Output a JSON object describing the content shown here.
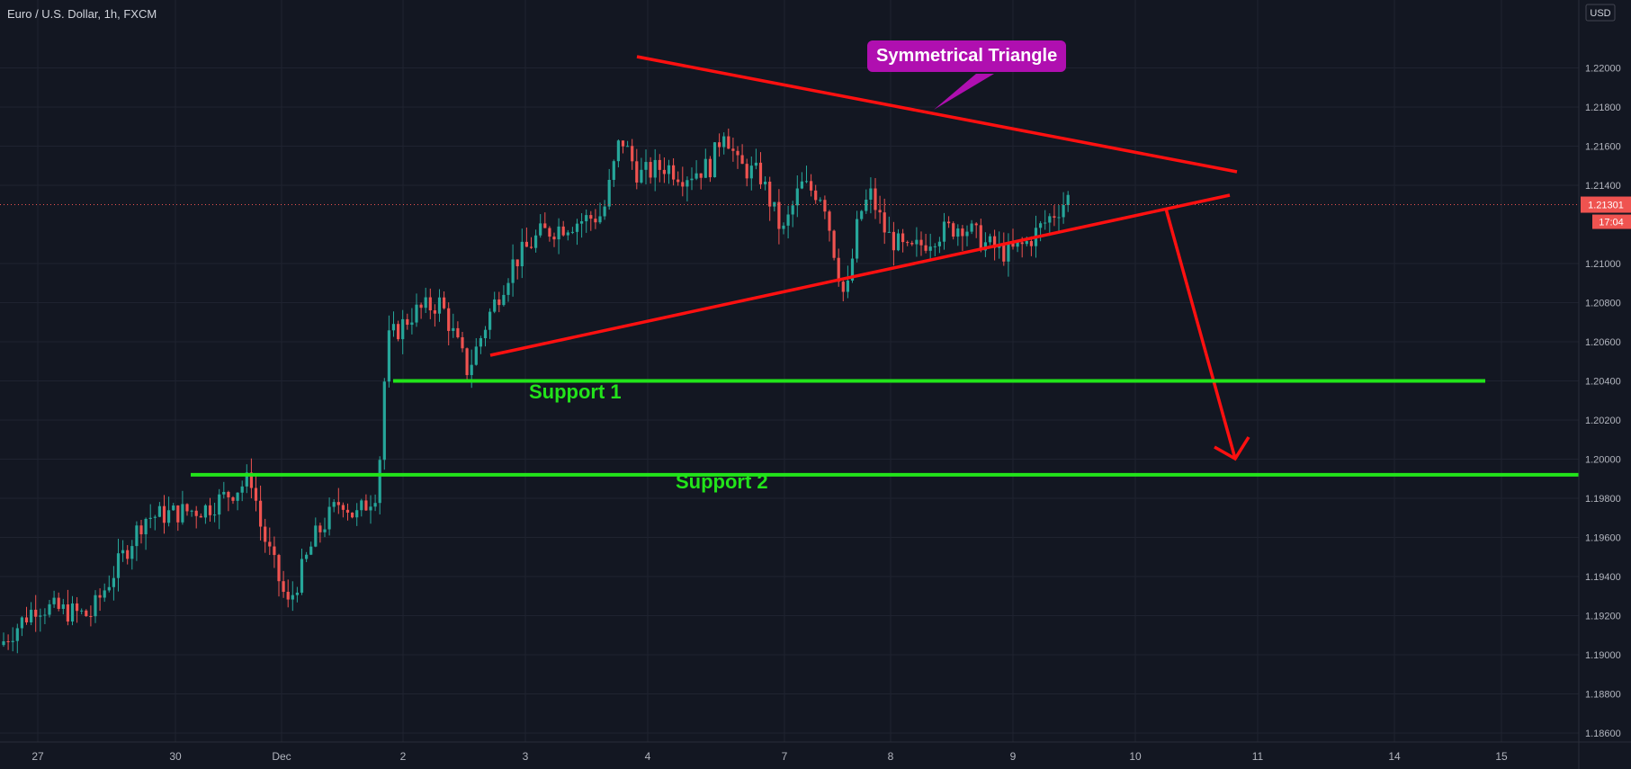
{
  "symbol_title": "Euro / U.S. Dollar, 1h, FXCM",
  "currency_label": "USD",
  "last_price": "1.21301",
  "countdown": "17:04",
  "colors": {
    "background": "#131722",
    "grid": "#1f2330",
    "up": "#26a69a",
    "down": "#ef5350",
    "triangle": "#ff1010",
    "support": "#22e41a",
    "callout": "#b00fb0"
  },
  "chart_data": {
    "type": "candlestick",
    "ylim": [
      1.186,
      1.222
    ],
    "y_ticks": [
      "1.22000",
      "1.21800",
      "1.21600",
      "1.21400",
      "1.21000",
      "1.20800",
      "1.20600",
      "1.20400",
      "1.20200",
      "1.20000",
      "1.19800",
      "1.19600",
      "1.19400",
      "1.19200",
      "1.19000",
      "1.18800",
      "1.18600"
    ],
    "x_ticks": [
      "27",
      "30",
      "Dec",
      "2",
      "3",
      "4",
      "7",
      "8",
      "9",
      "10",
      "11",
      "14",
      "15"
    ],
    "annotations": {
      "callout": "Symmetrical Triangle",
      "support1": "Support 1",
      "support2": "Support 2"
    },
    "support_levels": [
      1.204,
      1.1992
    ]
  }
}
